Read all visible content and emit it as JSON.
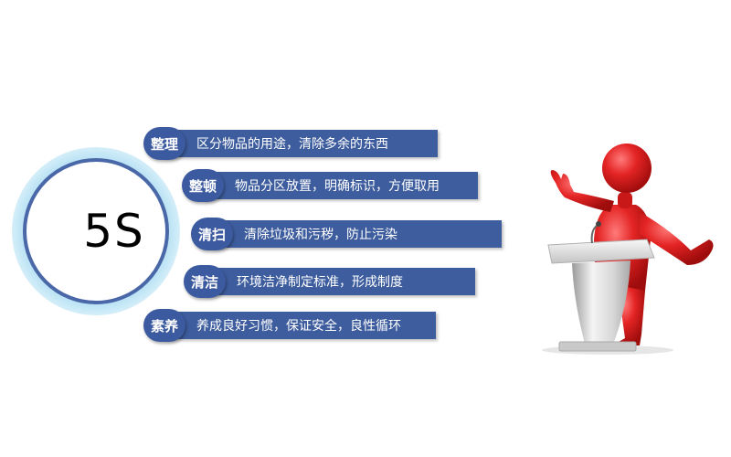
{
  "center": {
    "label": "5S"
  },
  "items": [
    {
      "term": "整理",
      "desc": "区分物品的用途，清除多余的东西"
    },
    {
      "term": "整顿",
      "desc": "物品分区放置，明确标识，方便取用"
    },
    {
      "term": "清扫",
      "desc": "清除垃圾和污秽，防止污染"
    },
    {
      "term": "清洁",
      "desc": "环境洁净制定标准，形成制度"
    },
    {
      "term": "素养",
      "desc": "养成良好习惯，保证安全，良性循环"
    }
  ],
  "colors": {
    "accent": "#3e5d9e",
    "badge": "#3b5aa0",
    "ring_outer": "#bfe3f4",
    "ring_inner": "#4a68a8",
    "figure": "#e02020",
    "podium": "#dcdcdc"
  },
  "icons": {
    "speaker": "presenter-at-podium-icon"
  }
}
